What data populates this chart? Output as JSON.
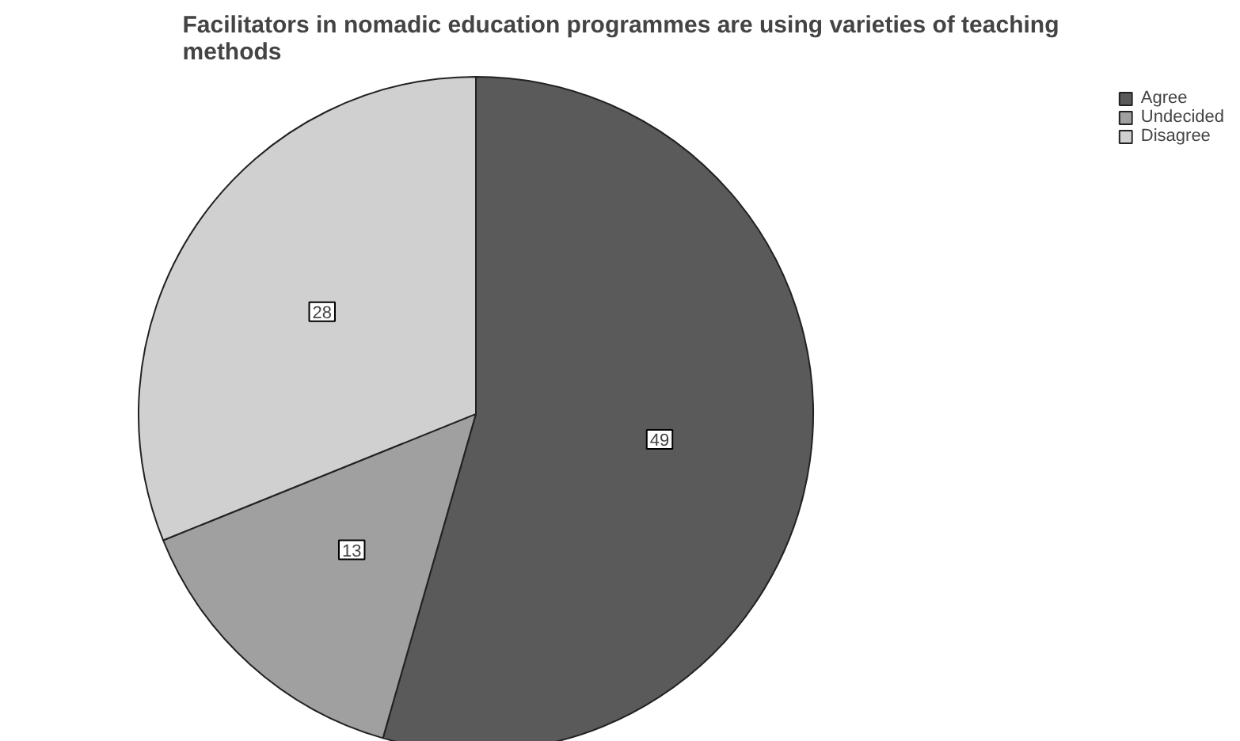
{
  "chart_data": {
    "type": "pie",
    "title": "Facilitators in nomadic education programmes are using varieties of teaching methods",
    "categories": [
      "Agree",
      "Undecided",
      "Disagree"
    ],
    "values": [
      49,
      13,
      28
    ],
    "colors": [
      "#5a5a5a",
      "#a0a0a0",
      "#d0d0d0"
    ],
    "data_labels": true,
    "legend": "top right"
  }
}
